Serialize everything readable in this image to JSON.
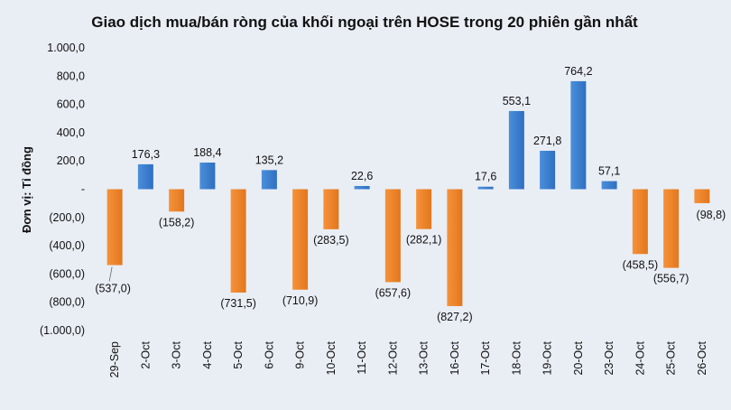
{
  "chart_data": {
    "type": "bar",
    "title": "Giao dịch mua/bán ròng của khối ngoại trên HOSE trong 20 phiên gần nhất",
    "ylabel": "Đơn vị: Tỉ đồng",
    "xlabel": "",
    "ylim": [
      -1000,
      1000
    ],
    "yticks": [
      1000,
      800,
      600,
      400,
      200,
      0,
      -200,
      -400,
      -600,
      -800,
      -1000
    ],
    "ytick_labels": [
      "1.000,0",
      "800,0",
      "600,0",
      "400,0",
      "200,0",
      "-",
      "(200,0)",
      "(400,0)",
      "(600,0)",
      "(800,0)",
      "(1.000,0)"
    ],
    "categories": [
      "29-Sep",
      "2-Oct",
      "3-Oct",
      "4-Oct",
      "5-Oct",
      "6-Oct",
      "9-Oct",
      "10-Oct",
      "11-Oct",
      "12-Oct",
      "13-Oct",
      "16-Oct",
      "17-Oct",
      "18-Oct",
      "19-Oct",
      "20-Oct",
      "23-Oct",
      "24-Oct",
      "25-Oct",
      "26-Oct"
    ],
    "values": [
      -537.0,
      176.3,
      -158.2,
      188.4,
      -731.5,
      135.2,
      -710.9,
      -283.5,
      22.6,
      -657.6,
      -282.1,
      -827.2,
      17.6,
      553.1,
      271.8,
      764.2,
      57.1,
      -458.5,
      -556.7,
      -98.8
    ],
    "value_labels": [
      "(537,0)",
      "176,3",
      "(158,2)",
      "188,4",
      "(731,5)",
      "135,2",
      "(710,9)",
      "(283,5)",
      "22,6",
      "(657,6)",
      "(282,1)",
      "(827,2)",
      "17,6",
      "553,1",
      "271,8",
      "764,2",
      "57,1",
      "(458,5)",
      "(556,7)",
      "(98,8)"
    ],
    "colors": {
      "positive": "#4a8fdc",
      "negative": "#f6923a",
      "positive_dark": "#2f6fbf",
      "negative_dark": "#e2771d"
    },
    "grid": false,
    "legend": "none"
  }
}
